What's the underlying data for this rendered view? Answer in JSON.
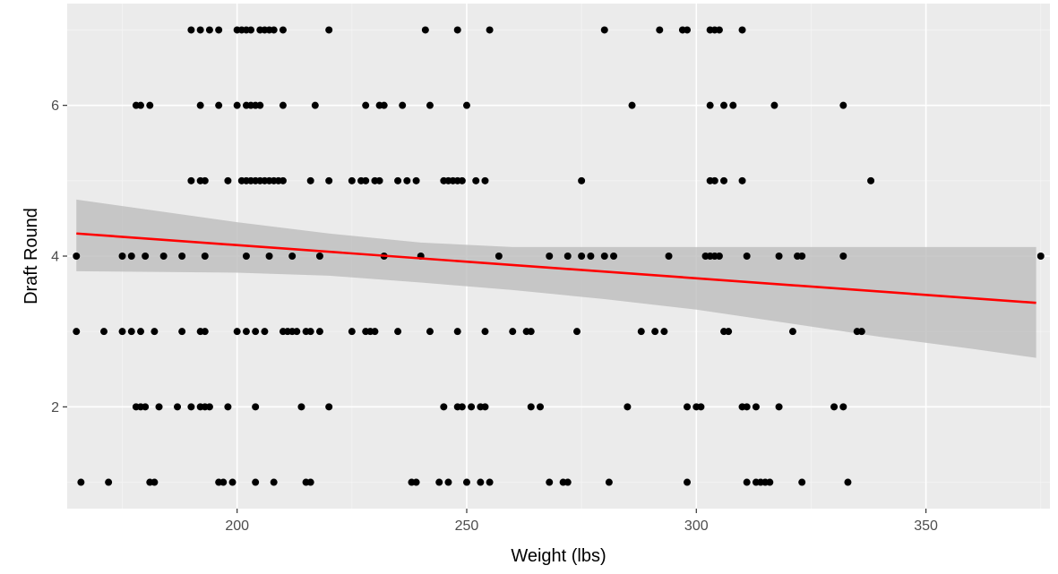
{
  "chart_data": {
    "type": "scatter",
    "title": "",
    "xlabel": "Weight (lbs)",
    "ylabel": "Draft Round",
    "xlim": [
      163,
      377
    ],
    "ylim": [
      0.65,
      7.35
    ],
    "x_ticks": [
      200,
      250,
      300,
      350
    ],
    "y_ticks": [
      2,
      4,
      6
    ],
    "x_tick_labels": [
      "200",
      "250",
      "300",
      "350"
    ],
    "y_tick_labels": [
      "2",
      "4",
      "6"
    ],
    "grid": true,
    "legend": "none",
    "colors": {
      "panel_background": "#ebebeb",
      "grid_major": "#ffffff",
      "grid_minor": "#f4f4f4",
      "points": "#000000",
      "trend_line": "#ff0000",
      "confidence_band": "#bdbdbd"
    },
    "points": [
      [
        190,
        7
      ],
      [
        192,
        7
      ],
      [
        194,
        7
      ],
      [
        196,
        7
      ],
      [
        200,
        7
      ],
      [
        201,
        7
      ],
      [
        202,
        7
      ],
      [
        203,
        7
      ],
      [
        205,
        7
      ],
      [
        206,
        7
      ],
      [
        207,
        7
      ],
      [
        208,
        7
      ],
      [
        210,
        7
      ],
      [
        220,
        7
      ],
      [
        241,
        7
      ],
      [
        248,
        7
      ],
      [
        255,
        7
      ],
      [
        280,
        7
      ],
      [
        292,
        7
      ],
      [
        297,
        7
      ],
      [
        298,
        7
      ],
      [
        303,
        7
      ],
      [
        304,
        7
      ],
      [
        305,
        7
      ],
      [
        310,
        7
      ],
      [
        178,
        6
      ],
      [
        179,
        6
      ],
      [
        181,
        6
      ],
      [
        192,
        6
      ],
      [
        196,
        6
      ],
      [
        200,
        6
      ],
      [
        202,
        6
      ],
      [
        203,
        6
      ],
      [
        204,
        6
      ],
      [
        205,
        6
      ],
      [
        210,
        6
      ],
      [
        217,
        6
      ],
      [
        228,
        6
      ],
      [
        231,
        6
      ],
      [
        232,
        6
      ],
      [
        236,
        6
      ],
      [
        242,
        6
      ],
      [
        250,
        6
      ],
      [
        286,
        6
      ],
      [
        303,
        6
      ],
      [
        306,
        6
      ],
      [
        308,
        6
      ],
      [
        317,
        6
      ],
      [
        332,
        6
      ],
      [
        190,
        5
      ],
      [
        192,
        5
      ],
      [
        193,
        5
      ],
      [
        198,
        5
      ],
      [
        201,
        5
      ],
      [
        202,
        5
      ],
      [
        203,
        5
      ],
      [
        204,
        5
      ],
      [
        205,
        5
      ],
      [
        206,
        5
      ],
      [
        207,
        5
      ],
      [
        208,
        5
      ],
      [
        209,
        5
      ],
      [
        210,
        5
      ],
      [
        216,
        5
      ],
      [
        220,
        5
      ],
      [
        225,
        5
      ],
      [
        227,
        5
      ],
      [
        228,
        5
      ],
      [
        230,
        5
      ],
      [
        231,
        5
      ],
      [
        235,
        5
      ],
      [
        237,
        5
      ],
      [
        239,
        5
      ],
      [
        245,
        5
      ],
      [
        246,
        5
      ],
      [
        247,
        5
      ],
      [
        248,
        5
      ],
      [
        249,
        5
      ],
      [
        252,
        5
      ],
      [
        254,
        5
      ],
      [
        275,
        5
      ],
      [
        303,
        5
      ],
      [
        304,
        5
      ],
      [
        306,
        5
      ],
      [
        310,
        5
      ],
      [
        338,
        5
      ],
      [
        165,
        4
      ],
      [
        175,
        4
      ],
      [
        177,
        4
      ],
      [
        180,
        4
      ],
      [
        184,
        4
      ],
      [
        188,
        4
      ],
      [
        193,
        4
      ],
      [
        202,
        4
      ],
      [
        207,
        4
      ],
      [
        212,
        4
      ],
      [
        218,
        4
      ],
      [
        232,
        4
      ],
      [
        240,
        4
      ],
      [
        257,
        4
      ],
      [
        268,
        4
      ],
      [
        272,
        4
      ],
      [
        275,
        4
      ],
      [
        277,
        4
      ],
      [
        280,
        4
      ],
      [
        282,
        4
      ],
      [
        294,
        4
      ],
      [
        302,
        4
      ],
      [
        303,
        4
      ],
      [
        304,
        4
      ],
      [
        305,
        4
      ],
      [
        311,
        4
      ],
      [
        318,
        4
      ],
      [
        322,
        4
      ],
      [
        323,
        4
      ],
      [
        332,
        4
      ],
      [
        375,
        4
      ],
      [
        165,
        3
      ],
      [
        171,
        3
      ],
      [
        175,
        3
      ],
      [
        177,
        3
      ],
      [
        179,
        3
      ],
      [
        182,
        3
      ],
      [
        188,
        3
      ],
      [
        192,
        3
      ],
      [
        193,
        3
      ],
      [
        200,
        3
      ],
      [
        202,
        3
      ],
      [
        204,
        3
      ],
      [
        206,
        3
      ],
      [
        210,
        3
      ],
      [
        211,
        3
      ],
      [
        212,
        3
      ],
      [
        213,
        3
      ],
      [
        215,
        3
      ],
      [
        216,
        3
      ],
      [
        218,
        3
      ],
      [
        225,
        3
      ],
      [
        228,
        3
      ],
      [
        229,
        3
      ],
      [
        230,
        3
      ],
      [
        235,
        3
      ],
      [
        242,
        3
      ],
      [
        248,
        3
      ],
      [
        254,
        3
      ],
      [
        260,
        3
      ],
      [
        263,
        3
      ],
      [
        264,
        3
      ],
      [
        274,
        3
      ],
      [
        288,
        3
      ],
      [
        291,
        3
      ],
      [
        293,
        3
      ],
      [
        306,
        3
      ],
      [
        307,
        3
      ],
      [
        321,
        3
      ],
      [
        335,
        3
      ],
      [
        336,
        3
      ],
      [
        178,
        2
      ],
      [
        179,
        2
      ],
      [
        180,
        2
      ],
      [
        183,
        2
      ],
      [
        187,
        2
      ],
      [
        190,
        2
      ],
      [
        192,
        2
      ],
      [
        193,
        2
      ],
      [
        194,
        2
      ],
      [
        198,
        2
      ],
      [
        204,
        2
      ],
      [
        214,
        2
      ],
      [
        220,
        2
      ],
      [
        245,
        2
      ],
      [
        248,
        2
      ],
      [
        249,
        2
      ],
      [
        251,
        2
      ],
      [
        253,
        2
      ],
      [
        254,
        2
      ],
      [
        264,
        2
      ],
      [
        266,
        2
      ],
      [
        285,
        2
      ],
      [
        298,
        2
      ],
      [
        300,
        2
      ],
      [
        301,
        2
      ],
      [
        310,
        2
      ],
      [
        311,
        2
      ],
      [
        313,
        2
      ],
      [
        318,
        2
      ],
      [
        330,
        2
      ],
      [
        332,
        2
      ],
      [
        166,
        1
      ],
      [
        172,
        1
      ],
      [
        181,
        1
      ],
      [
        182,
        1
      ],
      [
        196,
        1
      ],
      [
        197,
        1
      ],
      [
        199,
        1
      ],
      [
        204,
        1
      ],
      [
        208,
        1
      ],
      [
        215,
        1
      ],
      [
        216,
        1
      ],
      [
        238,
        1
      ],
      [
        239,
        1
      ],
      [
        244,
        1
      ],
      [
        246,
        1
      ],
      [
        250,
        1
      ],
      [
        253,
        1
      ],
      [
        255,
        1
      ],
      [
        268,
        1
      ],
      [
        271,
        1
      ],
      [
        272,
        1
      ],
      [
        281,
        1
      ],
      [
        298,
        1
      ],
      [
        311,
        1
      ],
      [
        313,
        1
      ],
      [
        314,
        1
      ],
      [
        315,
        1
      ],
      [
        316,
        1
      ],
      [
        323,
        1
      ],
      [
        333,
        1
      ]
    ],
    "trend_line": {
      "method": "linear",
      "x": [
        165,
        374
      ],
      "y": [
        4.3,
        3.38
      ]
    },
    "confidence_band": {
      "x": [
        165,
        200,
        220,
        240,
        260,
        280,
        300,
        320,
        340,
        360,
        374
      ],
      "lower": [
        3.8,
        3.78,
        3.74,
        3.65,
        3.55,
        3.43,
        3.29,
        3.11,
        2.93,
        2.77,
        2.65
      ],
      "upper": [
        4.75,
        4.45,
        4.3,
        4.18,
        4.12,
        4.12,
        4.12,
        4.12,
        4.12,
        4.12,
        4.12
      ]
    }
  }
}
